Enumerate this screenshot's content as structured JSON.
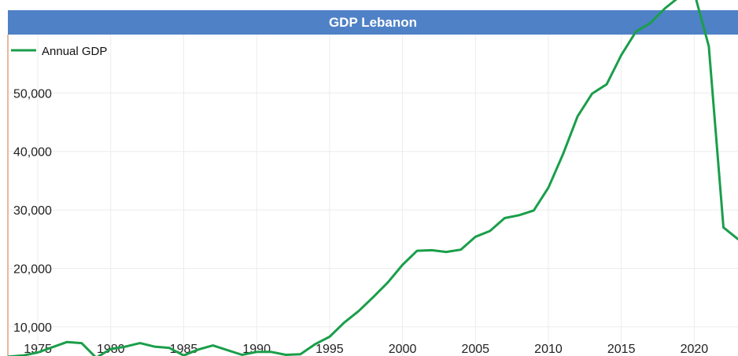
{
  "chart_data": {
    "type": "line",
    "title": "GDP Lebanon",
    "xlabel": "",
    "ylabel": "",
    "xlim": [
      1973,
      2023
    ],
    "ylim": [
      5000,
      60000
    ],
    "y_ticks": [
      10000,
      20000,
      30000,
      40000,
      50000
    ],
    "y_tick_labels": [
      "10,000",
      "20,000",
      "30,000",
      "40,000",
      "50,000"
    ],
    "x_ticks": [
      1975,
      1980,
      1985,
      1990,
      1995,
      2000,
      2005,
      2010,
      2015,
      2020
    ],
    "x_tick_labels": [
      "1975",
      "1980",
      "1985",
      "1990",
      "1995",
      "2000",
      "2005",
      "2010",
      "2015",
      "2020"
    ],
    "grid": true,
    "legend_position": "top-left",
    "series": [
      {
        "name": "Annual GDP",
        "color": "#1a9e4a",
        "x": [
          1973,
          1974,
          1975,
          1976,
          1977,
          1978,
          1979,
          1980,
          1981,
          1982,
          1983,
          1984,
          1985,
          1986,
          1987,
          1988,
          1989,
          1990,
          1991,
          1992,
          1993,
          1994,
          1995,
          1996,
          1997,
          1998,
          1999,
          2000,
          2001,
          2002,
          2003,
          2004,
          2005,
          2006,
          2007,
          2008,
          2009,
          2010,
          2011,
          2012,
          2013,
          2014,
          2015,
          2016,
          2017,
          2018,
          2019,
          2020,
          2021,
          2022,
          2023
        ],
        "values": [
          4900,
          5100,
          5600,
          6500,
          7400,
          7200,
          4700,
          6200,
          6600,
          7200,
          6600,
          6400,
          5100,
          6100,
          6800,
          6000,
          5200,
          5700,
          5700,
          5200,
          5300,
          7000,
          8300,
          10700,
          12700,
          15100,
          17600,
          20600,
          23000,
          23100,
          22800,
          23200,
          25400,
          26400,
          28600,
          29100,
          29900,
          33800,
          39500,
          46000,
          49900,
          51500,
          56500,
          60500,
          62000,
          64500,
          66500,
          67200,
          58000,
          27000,
          25000
        ]
      }
    ]
  }
}
